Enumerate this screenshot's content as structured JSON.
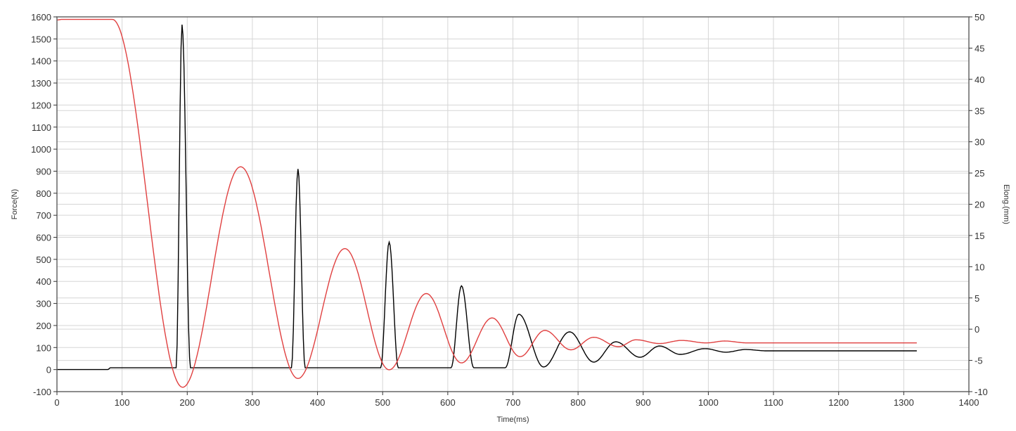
{
  "chart_data": {
    "type": "line",
    "title": "",
    "xlabel": "Time(ms)",
    "ylabel": "Force(N)",
    "y2label": "Elong.(mm)",
    "xlim": [
      0,
      1400
    ],
    "ylim": [
      -100,
      1600
    ],
    "y2lim": [
      -10,
      50
    ],
    "xticks": [
      0,
      100,
      200,
      300,
      400,
      500,
      600,
      700,
      800,
      900,
      1000,
      1100,
      1200,
      1300,
      1400
    ],
    "yticks": [
      -100,
      0,
      100,
      200,
      300,
      400,
      500,
      600,
      700,
      800,
      900,
      1000,
      1100,
      1200,
      1300,
      1400,
      1500,
      1600
    ],
    "y2ticks": [
      -10,
      -5,
      0,
      5,
      10,
      15,
      20,
      25,
      30,
      35,
      40,
      45,
      50
    ],
    "grid": true,
    "series": [
      {
        "axis": "left",
        "color": "#000000",
        "points": [
          [
            0,
            0
          ],
          [
            78,
            0
          ],
          [
            82,
            8
          ],
          [
            183,
            8
          ],
          [
            192,
            1565
          ],
          [
            205,
            8
          ],
          [
            360,
            8
          ],
          [
            370,
            910
          ],
          [
            381,
            8
          ],
          [
            497,
            8
          ],
          [
            510,
            578
          ],
          [
            524,
            8
          ],
          [
            605,
            8
          ],
          [
            621,
            380
          ],
          [
            640,
            8
          ],
          [
            688,
            8
          ],
          [
            709,
            251
          ],
          [
            747,
            12
          ],
          [
            787,
            171
          ],
          [
            824,
            34
          ],
          [
            858,
            126
          ],
          [
            895,
            56
          ],
          [
            925,
            107
          ],
          [
            957,
            69
          ],
          [
            995,
            95
          ],
          [
            1027,
            79
          ],
          [
            1057,
            91
          ],
          [
            1090,
            85
          ],
          [
            1320,
            85
          ]
        ]
      },
      {
        "axis": "right",
        "color": "#e04040",
        "points": [
          [
            0,
            49.5
          ],
          [
            8,
            49.6
          ],
          [
            85,
            49.6
          ],
          [
            193,
            -9.3
          ],
          [
            282,
            26.0
          ],
          [
            370,
            -7.9
          ],
          [
            442,
            12.9
          ],
          [
            510,
            -6.5
          ],
          [
            567,
            5.7
          ],
          [
            621,
            -5.4
          ],
          [
            668,
            1.8
          ],
          [
            711,
            -4.4
          ],
          [
            749,
            -0.2
          ],
          [
            789,
            -3.3
          ],
          [
            824,
            -1.3
          ],
          [
            862,
            -2.8
          ],
          [
            889,
            -1.7
          ],
          [
            925,
            -2.3
          ],
          [
            959,
            -1.8
          ],
          [
            997,
            -2.2
          ],
          [
            1025,
            -1.9
          ],
          [
            1060,
            -2.2
          ],
          [
            1320,
            -2.2
          ]
        ]
      }
    ]
  }
}
